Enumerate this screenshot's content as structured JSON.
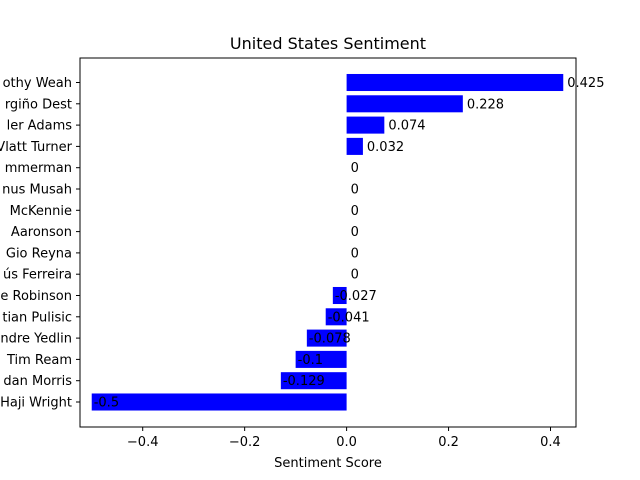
{
  "chart_data": {
    "type": "bar",
    "orientation": "horizontal",
    "title": "United States Sentiment",
    "xlabel": "Sentiment Score",
    "ylabel": "",
    "xlim": [
      -0.523,
      0.45
    ],
    "xticks": [
      -0.4,
      -0.2,
      0.0,
      0.2,
      0.4
    ],
    "xtick_labels": [
      "−0.4",
      "−0.2",
      "0.0",
      "0.2",
      "0.4"
    ],
    "bar_color": "#0000ff",
    "grid": false,
    "categories": [
      "Timothy Weah",
      "Sergiño Dest",
      "Tyler Adams",
      "Matt Turner",
      "Walker Zimmerman",
      "Yunus Musah",
      "Weston McKennie",
      "Brenden Aaronson",
      "Gio Reyna",
      "Jesús Ferreira",
      "Antonee Robinson",
      "Christian Pulisic",
      "DeAndre Yedlin",
      "Tim Ream",
      "Jordan Morris",
      "Haji Wright"
    ],
    "category_labels_visible": [
      "othy Weah",
      "rgiño Dest",
      "ler Adams",
      "Vlatt Turner",
      "mmerman",
      "nus Musah",
      "McKennie",
      "Aaronson",
      "Gio Reyna",
      "ús Ferreira",
      "e Robinson",
      "tian Pulisic",
      "ndre Yedlin",
      "Tim Ream",
      "dan Morris",
      "Haji Wright"
    ],
    "values": [
      0.425,
      0.228,
      0.074,
      0.032,
      0,
      0,
      0,
      0,
      0,
      0,
      -0.027,
      -0.041,
      -0.078,
      -0.1,
      -0.129,
      -0.5
    ],
    "value_labels": [
      "0.425",
      "0.228",
      "0.074",
      "0.032",
      "0",
      "0",
      "0",
      "0",
      "0",
      "0",
      "-0.027",
      "-0.041",
      "-0.078",
      "-0.1",
      "-0.129",
      "-0.5"
    ]
  }
}
